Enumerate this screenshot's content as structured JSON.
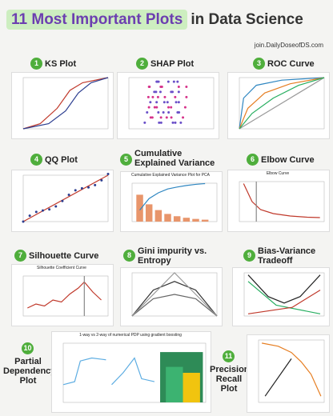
{
  "header": {
    "title_highlight": "11 Most Important Plots",
    "title_rest": "in Data Science",
    "brand": "join.DailyDoseofDS.com"
  },
  "plots": [
    {
      "number": 1,
      "title": "KS Plot"
    },
    {
      "number": 2,
      "title": "SHAP Plot"
    },
    {
      "number": 3,
      "title": "ROC Curve"
    },
    {
      "number": 4,
      "title": "QQ Plot"
    },
    {
      "number": 5,
      "title": "Cumulative Explained Variance",
      "caption": "Cumulative Explained Variance Plot for PCA"
    },
    {
      "number": 6,
      "title": "Elbow Curve",
      "caption": "Elbow Curve"
    },
    {
      "number": 7,
      "title": "Silhouette Curve",
      "caption": "Silhouette Coefficient Curve"
    },
    {
      "number": 8,
      "title": "Gini impurity vs. Entropy"
    },
    {
      "number": 9,
      "title": "Bias-Variance Tradeoff"
    },
    {
      "number": 10,
      "title": "Partial Dependency Plot",
      "caption": "1-way vs 2-way of numerical PDP using gradient boosting"
    },
    {
      "number": 11,
      "title": "Precision Recall Plot"
    }
  ]
}
